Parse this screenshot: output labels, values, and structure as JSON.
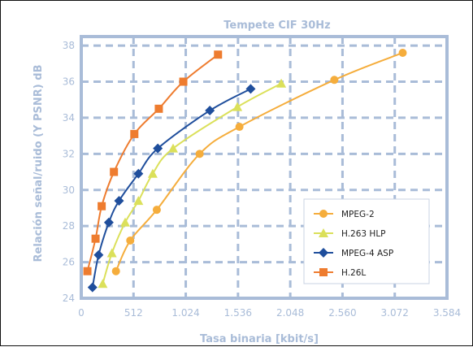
{
  "colors": {
    "frame_border": "#111111",
    "plot_border": "#a9bcd8",
    "grid": "#a9bcd8",
    "text": "#a9bcd8"
  },
  "chart_data": {
    "type": "line",
    "title": "Tempete CIF 30Hz",
    "xlabel": "Tasa binaria [kbit/s]",
    "ylabel": "Relación señal/ruido (Y PSNR) dB",
    "xlim": [
      0,
      3584
    ],
    "ylim": [
      24,
      38.5
    ],
    "xticks": [
      0,
      512,
      1024,
      1536,
      2048,
      2560,
      3072,
      3584
    ],
    "xtick_labels": [
      "0",
      "512",
      "1.024",
      "1.536",
      "2.048",
      "2.560",
      "3.072",
      "3.584"
    ],
    "yticks": [
      24,
      26,
      28,
      30,
      32,
      34,
      36,
      38
    ],
    "ytick_labels": [
      "24",
      "26",
      "28",
      "30",
      "32",
      "34",
      "36",
      "38"
    ],
    "grid": true,
    "legend_position": "bottom-right",
    "series": [
      {
        "name": "MPEG-2",
        "color": "#f5ad3c",
        "marker": "circle",
        "x": [
          340,
          480,
          740,
          1160,
          1550,
          2480,
          3150
        ],
        "y": [
          25.5,
          27.2,
          28.9,
          32.0,
          33.5,
          36.1,
          37.6
        ]
      },
      {
        "name": "H.263 HLP",
        "color": "#dbe05a",
        "marker": "triangle",
        "x": [
          210,
          300,
          430,
          560,
          700,
          900,
          1530,
          1960
        ],
        "y": [
          24.8,
          26.5,
          28.2,
          29.4,
          30.9,
          32.3,
          34.6,
          35.9
        ]
      },
      {
        "name": "MPEG-4 ASP",
        "color": "#1f4e9c",
        "marker": "diamond",
        "x": [
          110,
          170,
          270,
          370,
          560,
          750,
          1260,
          1660
        ],
        "y": [
          24.6,
          26.4,
          28.2,
          29.4,
          30.9,
          32.3,
          34.4,
          35.6
        ]
      },
      {
        "name": "H.26L",
        "color": "#ee7c2f",
        "marker": "square",
        "x": [
          60,
          140,
          200,
          320,
          520,
          760,
          1000,
          1340
        ],
        "y": [
          25.5,
          27.3,
          29.1,
          31.0,
          33.1,
          34.5,
          36.0,
          37.5
        ]
      }
    ]
  }
}
